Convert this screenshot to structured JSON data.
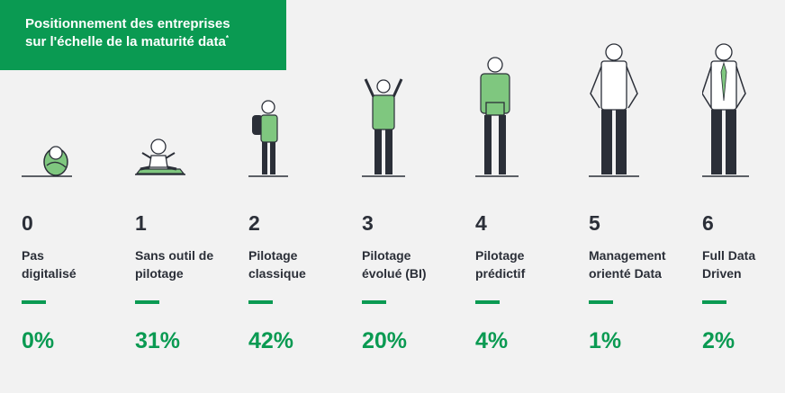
{
  "header": {
    "title_line1": "Positionnement des entreprises",
    "title_line2": "sur l'échelle de la maturité data",
    "title_mark": "*"
  },
  "colors": {
    "accent": "#0a9a52",
    "text": "#2b2f38",
    "figure_green": "#7fc77f",
    "figure_dark": "#2b2f38",
    "background": "#f2f2f2"
  },
  "chart_data": {
    "type": "table",
    "title": "Positionnement des entreprises sur l'échelle de la maturité data*",
    "levels": [
      {
        "level": "0",
        "label": [
          "Pas",
          "digitalisé"
        ],
        "value": 0,
        "value_text": "0%",
        "icon": "swaddled-baby-icon"
      },
      {
        "level": "1",
        "label": [
          "Sans outil de",
          "pilotage"
        ],
        "value": 31,
        "value_text": "31%",
        "icon": "sitting-baby-icon"
      },
      {
        "level": "2",
        "label": [
          "Pilotage",
          "classique"
        ],
        "value": 42,
        "value_text": "42%",
        "icon": "child-with-backpack-icon"
      },
      {
        "level": "3",
        "label": [
          "Pilotage",
          "évolué (BI)"
        ],
        "value": 20,
        "value_text": "20%",
        "icon": "cheering-kid-icon"
      },
      {
        "level": "4",
        "label": [
          "Pilotage",
          "prédictif"
        ],
        "value": 4,
        "value_text": "4%",
        "icon": "teen-with-laptop-icon"
      },
      {
        "level": "5",
        "label": [
          "Management",
          "orienté Data"
        ],
        "value": 1,
        "value_text": "1%",
        "icon": "man-tshirt-icon"
      },
      {
        "level": "6",
        "label": [
          "Full Data",
          "Driven"
        ],
        "value": 2,
        "value_text": "2%",
        "icon": "man-tie-icon"
      }
    ]
  }
}
